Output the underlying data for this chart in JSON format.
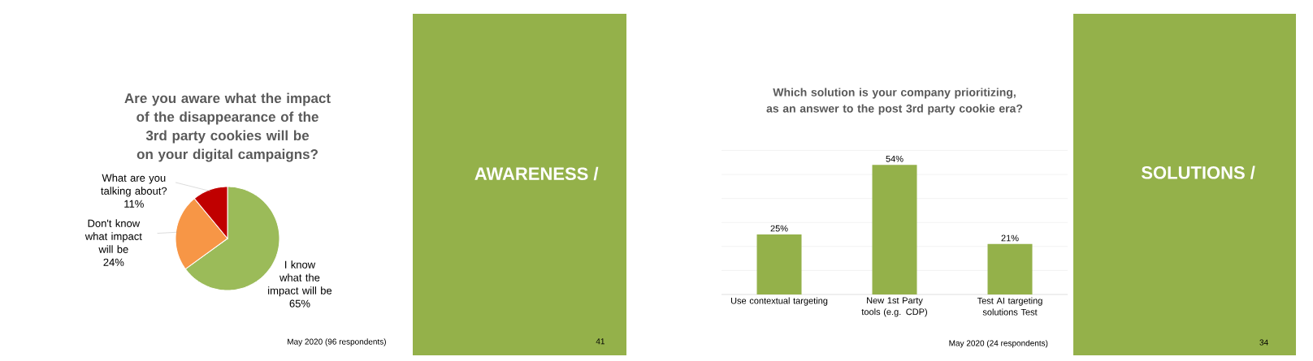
{
  "chart_data": [
    {
      "type": "pie",
      "title": "Are you aware what the impact of the disappearance of the 3rd party cookies will be on your digital campaigns?",
      "categories": [
        "I know what the impact will be",
        "Don't know what impact will be",
        "What are you talking about?"
      ],
      "values": [
        65,
        24,
        11
      ],
      "colors": [
        "#9bbb59",
        "#f79646",
        "#c00000"
      ],
      "value_labels": [
        "65%",
        "24%",
        "11%"
      ],
      "annotations": [
        "AWARENESS /",
        "May 2020 (96 respondents)",
        "41"
      ]
    },
    {
      "type": "bar",
      "title": "Which solution is your company prioritizing, as an answer to the post 3rd party cookie era?",
      "categories": [
        "Use contextual targeting",
        "New 1st Party tools (e.g. CDP)",
        "Test AI targeting solutions Test"
      ],
      "values": [
        25,
        54,
        21
      ],
      "color": "#94b14a",
      "value_labels": [
        "25%",
        "54%",
        "21%"
      ],
      "grid": "y",
      "tick_labels": "x",
      "annotations": [
        "SOLUTIONS /",
        "May 2020 (24 respondents)",
        "34"
      ]
    }
  ]
}
